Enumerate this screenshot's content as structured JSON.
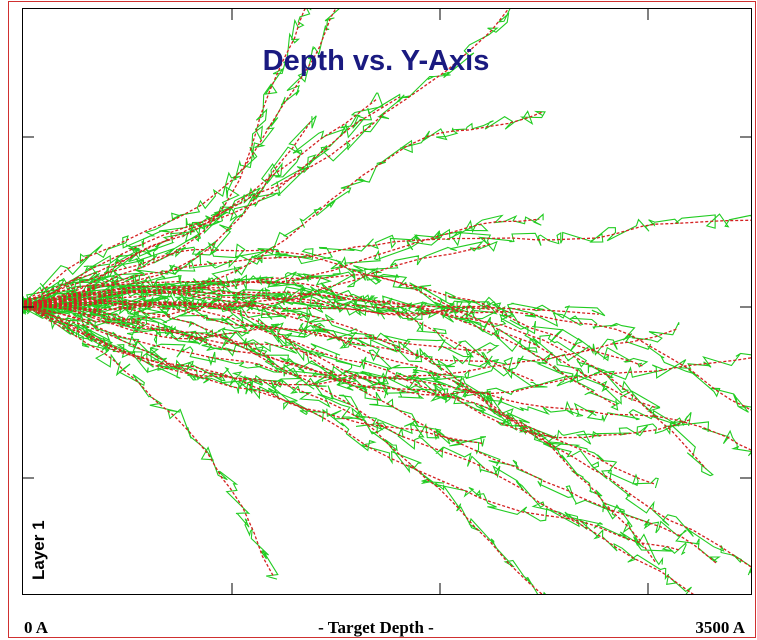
{
  "title": "Depth vs. Y-Axis",
  "layer_label": "Layer 1",
  "x_axis": {
    "start": "0 A",
    "label": "- Target Depth -",
    "end": "3500 A"
  }
}
